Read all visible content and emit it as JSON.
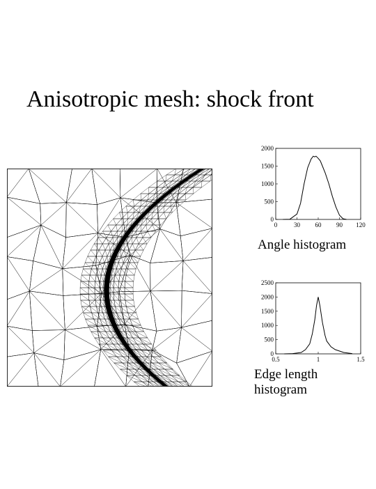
{
  "slide": {
    "title": "Anisotropic mesh: shock front"
  },
  "angle_histogram": {
    "caption": "Angle histogram"
  },
  "edge_histogram": {
    "caption_line1": "Edge length",
    "caption_line2": "histogram"
  },
  "chart_data": [
    {
      "type": "line",
      "title": "",
      "xlabel": "",
      "ylabel": "",
      "xlim": [
        0,
        120
      ],
      "ylim": [
        0,
        2000
      ],
      "xticks": [
        "0",
        "30",
        "60",
        "90",
        "120"
      ],
      "yticks": [
        "0",
        "500",
        "1000",
        "1500",
        "2000"
      ],
      "series": [
        {
          "x": [
            10,
            20,
            30,
            35,
            40,
            45,
            50,
            53,
            55,
            57,
            60,
            63,
            65,
            70,
            75,
            80,
            85,
            90,
            95,
            100
          ],
          "values": [
            0,
            5,
            150,
            450,
            1000,
            1450,
            1700,
            1780,
            1760,
            1780,
            1720,
            1650,
            1550,
            1300,
            1000,
            650,
            350,
            120,
            20,
            0
          ]
        }
      ]
    },
    {
      "type": "line",
      "title": "",
      "xlabel": "",
      "ylabel": "",
      "xlim": [
        0.5,
        1.5
      ],
      "ylim": [
        0,
        2500
      ],
      "xticks": [
        "0.5",
        "1",
        "1.5"
      ],
      "yticks": [
        "0",
        "500",
        "1000",
        "1500",
        "2000",
        "2500"
      ],
      "series": [
        {
          "x": [
            0.6,
            0.7,
            0.8,
            0.85,
            0.9,
            0.93,
            0.96,
            0.98,
            1.0,
            1.02,
            1.05,
            1.08,
            1.1,
            1.15,
            1.2,
            1.3,
            1.4
          ],
          "values": [
            0,
            10,
            50,
            150,
            350,
            700,
            1200,
            1700,
            2000,
            1700,
            1100,
            650,
            450,
            250,
            150,
            50,
            10
          ]
        }
      ]
    }
  ]
}
